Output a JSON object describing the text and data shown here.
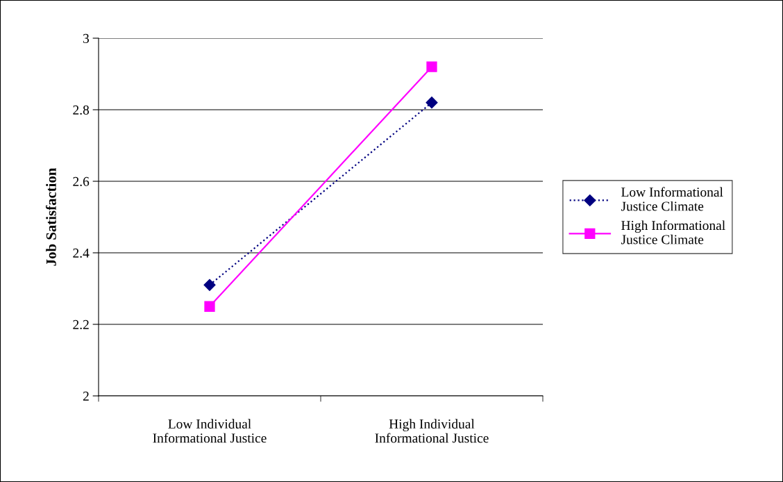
{
  "chart_data": {
    "type": "line",
    "ylabel": "Job Satisfaction",
    "categories": [
      "Low Individual\nInformational Justice",
      "High Individual\nInformational Justice"
    ],
    "series": [
      {
        "name": "Low Informational\nJustice Climate",
        "color": "#000080",
        "values": [
          2.31,
          2.82
        ],
        "marker": "diamond",
        "line_style": "dotted"
      },
      {
        "name": "High Informational\nJustice Climate",
        "color": "#ff00ff",
        "values": [
          2.25,
          2.92
        ],
        "marker": "square",
        "line_style": "solid"
      }
    ],
    "ylim": [
      2,
      3
    ],
    "yticks": [
      2,
      2.2,
      2.4,
      2.6,
      2.8,
      3
    ],
    "grid": "y",
    "legend": "right"
  }
}
